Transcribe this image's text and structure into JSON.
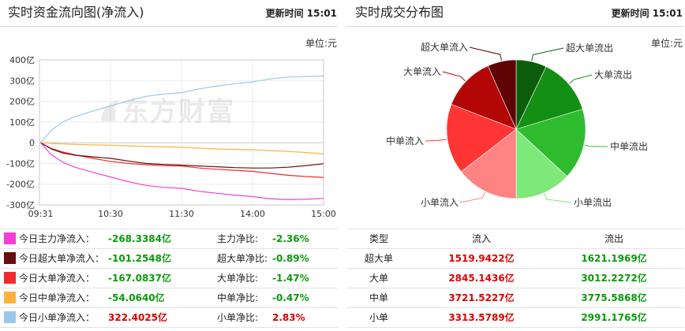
{
  "left_panel": {
    "title": "实时资金流向图(净流入)",
    "update": "更新时间 15:01",
    "unit": "单位:元",
    "watermark": "东方财富"
  },
  "right_panel": {
    "title": "实时成交分布图",
    "update": "更新时间 15:01",
    "unit": "单位:元",
    "table": {
      "headers": [
        "类型",
        "流入",
        "流出"
      ],
      "rows": [
        {
          "type": "超大单",
          "inflow": "1519.9422亿",
          "outflow": "1621.1969亿"
        },
        {
          "type": "大单",
          "inflow": "2845.1436亿",
          "outflow": "3012.2272亿"
        },
        {
          "type": "中单",
          "inflow": "3721.5227亿",
          "outflow": "3775.5868亿"
        },
        {
          "type": "小单",
          "inflow": "3313.5789亿",
          "outflow": "2991.1765亿"
        }
      ]
    }
  },
  "colors": {
    "positive": "#e00000",
    "negative": "#0a9a0a",
    "grid": "#ebebeb",
    "axis": "#c8c8c8"
  },
  "chart_data": [
    {
      "type": "line",
      "x": [
        "09:31",
        "09:40",
        "09:50",
        "10:00",
        "10:15",
        "10:30",
        "10:45",
        "11:00",
        "11:15",
        "11:30",
        "13:15",
        "13:30",
        "13:45",
        "14:00",
        "14:15",
        "14:30",
        "14:45",
        "15:00"
      ],
      "xticks": [
        "09:31",
        "10:30",
        "11:30",
        "14:00",
        "15:00"
      ],
      "yticks": [
        {
          "value": 400,
          "label": "400亿"
        },
        {
          "value": 300,
          "label": "300亿"
        },
        {
          "value": 200,
          "label": "200亿"
        },
        {
          "value": 100,
          "label": "100亿"
        },
        {
          "value": 0,
          "label": "0"
        },
        {
          "value": -100,
          "label": "-100亿"
        },
        {
          "value": -200,
          "label": "-200亿"
        },
        {
          "value": -300,
          "label": "-300亿"
        }
      ],
      "ylim": [
        -300,
        400
      ],
      "grid": true,
      "series": [
        {
          "name": "今日主力净流入：",
          "color": "#f23fd8",
          "net": "-268.3384亿",
          "ratio_label": "主力净比:",
          "ratio": "-2.36%",
          "values": [
            0,
            -58,
            -95,
            -118,
            -143,
            -165,
            -188,
            -206,
            -215,
            -220,
            -234,
            -244,
            -253,
            -260,
            -270,
            -275,
            -273,
            -268.34
          ]
        },
        {
          "name": "今日超大单净流入：",
          "color": "#6a0d0d",
          "net": "-101.2548亿",
          "ratio_label": "超大单净比:",
          "ratio": "-0.89%",
          "values": [
            0,
            -30,
            -50,
            -60,
            -68,
            -75,
            -88,
            -100,
            -105,
            -108,
            -112,
            -116,
            -120,
            -122,
            -122,
            -118,
            -110,
            -101.25
          ]
        },
        {
          "name": "今日大单净流入：",
          "color": "#f12b2b",
          "net": "-167.0837亿",
          "ratio_label": "大单净比:",
          "ratio": "-1.47%",
          "values": [
            0,
            -28,
            -45,
            -58,
            -75,
            -90,
            -100,
            -106,
            -110,
            -112,
            -122,
            -128,
            -133,
            -138,
            -148,
            -157,
            -163,
            -167.08
          ]
        },
        {
          "name": "今日中单净流入：",
          "color": "#ffb13d",
          "net": "-54.0640亿",
          "ratio_label": "中单净比:",
          "ratio": "-0.47%",
          "values": [
            0,
            -3,
            -6,
            -8,
            -10,
            -12,
            -15,
            -18,
            -20,
            -22,
            -26,
            -30,
            -32,
            -34,
            -38,
            -42,
            -47,
            -54.06
          ]
        },
        {
          "name": "今日小单净流入：",
          "color": "#9cc8ee",
          "net": "322.4025亿",
          "ratio_label": "小单净比:",
          "ratio": "2.83%",
          "values": [
            0,
            61,
            101,
            126,
            153,
            177,
            203,
            224,
            235,
            242,
            260,
            274,
            285,
            294,
            308,
            317,
            320,
            322.4
          ]
        }
      ]
    },
    {
      "type": "pie",
      "slices": [
        {
          "label": "超大单流出",
          "value": 1621.1969,
          "color": "#0b5d0b"
        },
        {
          "label": "大单流出",
          "value": 3012.2272,
          "color": "#138f13"
        },
        {
          "label": "中单流出",
          "value": 3775.5868,
          "color": "#2ebc2e"
        },
        {
          "label": "小单流出",
          "value": 2991.1765,
          "color": "#7fe87a"
        },
        {
          "label": "小单流入",
          "value": 3313.5789,
          "color": "#ff8383"
        },
        {
          "label": "中单流入",
          "value": 3721.5227,
          "color": "#ff3535"
        },
        {
          "label": "大单流入",
          "value": 2845.1436,
          "color": "#b30606"
        },
        {
          "label": "超大单流入",
          "value": 1519.9422,
          "color": "#5e0404"
        }
      ]
    }
  ]
}
